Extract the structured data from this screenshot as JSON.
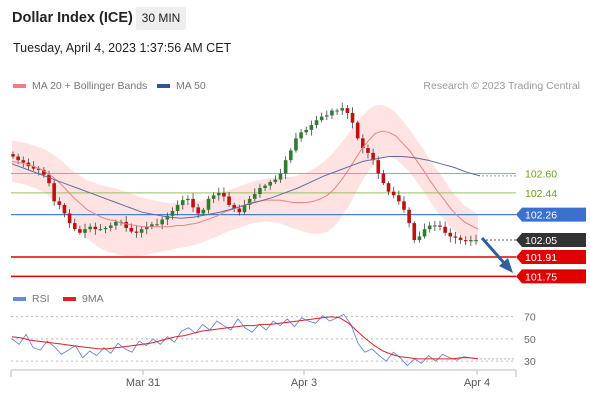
{
  "header": {
    "title": "Dollar Index (ICE)",
    "timeframe": "30 MIN",
    "datetime": "Tuesday, April 4, 2023 1:37:56 AM CET"
  },
  "legend": {
    "ma20_label": "MA 20 + Bollinger Bands",
    "ma50_label": "MA 50",
    "credit": "Research © 2023 Trading Central",
    "rsi_label": "RSI",
    "rsi_ma_label": "9MA"
  },
  "colors": {
    "ma20": "#f08080",
    "bollinger_fill": "#ffe0e0",
    "ma50": "#5a6f9c",
    "candle_up": "#2e7d2e",
    "candle_down": "#c01010",
    "resistance": "#99c060",
    "pivot": "#4a7fd0",
    "support": "#e00000",
    "current": "#333333",
    "rsi": "#6688dd",
    "rsi_ma": "#e02020",
    "arrow": "#2f5f9f"
  },
  "chart_data": [
    {
      "type": "candlestick",
      "series_name": "Dollar Index (ICE)",
      "x_labels": [
        "Mar 31",
        "Apr 3",
        "Apr 4"
      ],
      "y_levels": [
        {
          "value": 102.6,
          "label": "102.60",
          "kind": "resistance"
        },
        {
          "value": 102.44,
          "label": "102.44",
          "kind": "resistance"
        },
        {
          "value": 102.26,
          "label": "102.26",
          "kind": "pivot"
        },
        {
          "value": 102.05,
          "label": "102.05",
          "kind": "current"
        },
        {
          "value": 101.91,
          "label": "101.91",
          "kind": "support"
        },
        {
          "value": 101.75,
          "label": "101.75",
          "kind": "support"
        }
      ],
      "close": [
        102.74,
        102.71,
        102.69,
        102.66,
        102.64,
        102.63,
        102.59,
        102.52,
        102.37,
        102.34,
        102.27,
        102.19,
        102.14,
        102.11,
        102.14,
        102.16,
        102.14,
        102.14,
        102.15,
        102.17,
        102.2,
        102.2,
        102.15,
        102.12,
        102.11,
        102.14,
        102.16,
        102.18,
        102.18,
        102.22,
        102.25,
        102.29,
        102.34,
        102.38,
        102.39,
        102.32,
        102.27,
        102.3,
        102.39,
        102.42,
        102.44,
        102.41,
        102.34,
        102.31,
        102.28,
        102.34,
        102.39,
        102.43,
        102.48,
        102.5,
        102.53,
        102.55,
        102.6,
        102.71,
        102.79,
        102.89,
        102.94,
        102.96,
        103.0,
        103.04,
        103.07,
        103.08,
        103.12,
        103.12,
        103.14,
        103.1,
        103.02,
        102.89,
        102.81,
        102.77,
        102.71,
        102.6,
        102.52,
        102.45,
        102.42,
        102.37,
        102.3,
        102.19,
        102.05,
        102.08,
        102.14,
        102.17,
        102.17,
        102.16,
        102.11,
        102.08,
        102.07,
        102.05,
        102.04,
        102.05,
        102.05
      ],
      "ma20": [
        102.7,
        102.69,
        102.68,
        102.66,
        102.64,
        102.61,
        102.57,
        102.52,
        102.46,
        102.4,
        102.35,
        102.3,
        102.27,
        102.24,
        102.22,
        102.21,
        102.19,
        102.18,
        102.17,
        102.16,
        102.16,
        102.16,
        102.16,
        102.16,
        102.17,
        102.17,
        102.18,
        102.19,
        102.21,
        102.23,
        102.25,
        102.28,
        102.3,
        102.32,
        102.34,
        102.36,
        102.37,
        102.38,
        102.38,
        102.38,
        102.37,
        102.36,
        102.36,
        102.36,
        102.37,
        102.39,
        102.42,
        102.47,
        102.54,
        102.62,
        102.71,
        102.8,
        102.87,
        102.93,
        102.95,
        102.94,
        102.91,
        102.85,
        102.79,
        102.71,
        102.63,
        102.54,
        102.46,
        102.39,
        102.31,
        102.25,
        102.2,
        102.17,
        102.14
      ],
      "ma50": [
        102.68,
        102.64,
        102.6,
        102.56,
        102.52,
        102.48,
        102.44,
        102.4,
        102.36,
        102.32,
        102.28,
        102.26,
        102.24,
        102.23,
        102.24,
        102.26,
        102.28,
        102.31,
        102.34,
        102.37,
        102.4,
        102.44,
        102.48,
        102.53,
        102.58,
        102.62,
        102.66,
        102.7,
        102.72,
        102.74,
        102.74,
        102.73,
        102.71,
        102.68,
        102.65,
        102.61,
        102.58
      ],
      "ylim": [
        101.72,
        103.24
      ]
    },
    {
      "type": "line",
      "series_names": [
        "RSI",
        "9MA"
      ],
      "y_ticks": [
        "70",
        "50",
        "30"
      ],
      "ylim": [
        22,
        76
      ],
      "rsi": [
        50,
        45,
        54,
        42,
        40,
        48,
        43,
        36,
        40,
        44,
        33,
        39,
        35,
        42,
        37,
        46,
        41,
        38,
        48,
        44,
        50,
        45,
        52,
        47,
        57,
        60,
        55,
        63,
        58,
        66,
        62,
        58,
        68,
        60,
        56,
        63,
        58,
        66,
        62,
        68,
        61,
        69,
        66,
        64,
        71,
        66,
        69,
        72,
        63,
        46,
        38,
        41,
        35,
        30,
        38,
        33,
        26,
        32,
        28,
        35,
        30,
        36,
        33,
        31,
        34,
        33,
        32
      ],
      "rsi_ma": [
        52,
        51,
        49,
        48,
        47,
        46,
        45,
        44,
        43,
        42,
        41,
        41,
        42,
        43,
        44,
        45,
        46,
        48,
        50,
        52,
        53,
        55,
        57,
        58,
        59,
        60,
        61,
        62,
        62,
        63,
        63,
        64,
        65,
        66,
        67,
        68,
        69,
        70,
        69,
        64,
        57,
        50,
        44,
        39,
        36,
        34,
        33,
        32,
        32,
        32,
        32,
        32,
        33,
        33,
        32
      ]
    }
  ]
}
